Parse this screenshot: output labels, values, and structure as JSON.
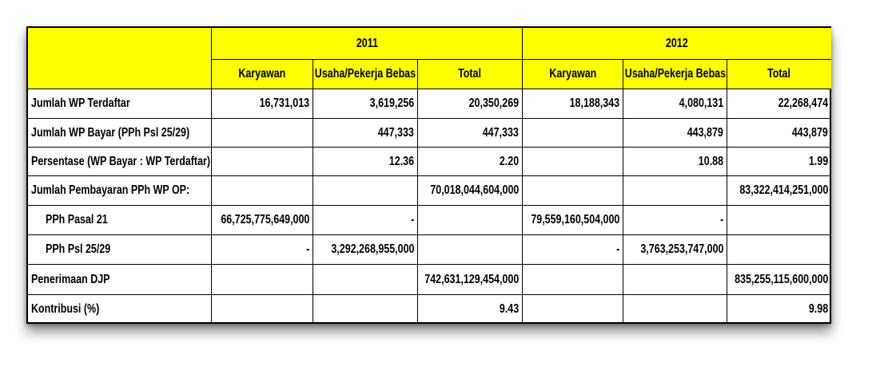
{
  "table": {
    "years": [
      "2011",
      "2012"
    ],
    "subheaders": [
      "Karyawan",
      "Usaha/Pekerja Bebas",
      "Total",
      "Karyawan",
      "Usaha/Pekerja Bebas",
      "Total"
    ],
    "rows": [
      {
        "label": "Jumlah WP Terdaftar",
        "cells": [
          "16,731,013",
          "3,619,256",
          "20,350,269",
          "18,188,343",
          "4,080,131",
          "22,268,474"
        ]
      },
      {
        "label": "Jumlah WP Bayar (PPh Psl 25/29)",
        "cells": [
          null,
          "447,333",
          "447,333",
          null,
          "443,879",
          "443,879"
        ]
      },
      {
        "label": "Persentase (WP Bayar : WP Terdaftar)",
        "cells": [
          null,
          "12.36",
          "2.20",
          null,
          "10.88",
          "1.99"
        ]
      },
      {
        "label": "Jumlah Pembayaran PPh WP OP:",
        "cells": [
          null,
          null,
          "70,018,044,604,000",
          null,
          null,
          "83,322,414,251,000"
        ]
      },
      {
        "label": "PPh Pasal 21",
        "cells": [
          "66,725,775,649,000",
          "-",
          null,
          "79,559,160,504,000",
          "-",
          null
        ]
      },
      {
        "label": "PPh Psl 25/29",
        "cells": [
          "-",
          "3,292,268,955,000",
          null,
          "-",
          "3,763,253,747,000",
          null
        ]
      },
      {
        "label": "Penerimaan DJP",
        "cells": [
          null,
          null,
          "742,631,129,454,000",
          null,
          null,
          "835,255,115,600,000"
        ]
      },
      {
        "label": "Kontribusi (%)",
        "cells": [
          null,
          null,
          "9.43",
          null,
          null,
          "9.98"
        ]
      }
    ]
  }
}
